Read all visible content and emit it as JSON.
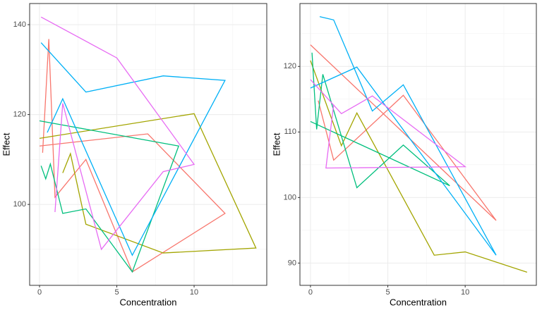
{
  "chart_data": [
    {
      "type": "line",
      "x_label": "Concentration",
      "y_label": "Effect",
      "xlim": [
        -0.64,
        14.7
      ],
      "ylim": [
        82,
        144.7
      ],
      "xticks": [
        0,
        5,
        10
      ],
      "yticks": [
        100,
        120,
        140
      ],
      "grid": true,
      "series": [
        {
          "color": "#F8766D",
          "x": [
            0.2,
            0.6,
            1,
            3,
            6,
            12,
            7,
            0
          ],
          "values": [
            111.5,
            136.8,
            101.6,
            110,
            85,
            98,
            115.7,
            113
          ]
        },
        {
          "color": "#A3A500",
          "x": [
            0,
            10,
            14,
            8,
            3,
            2,
            1.5
          ],
          "values": [
            114.7,
            120.2,
            90.3,
            89.2,
            95.6,
            111.3,
            107
          ]
        },
        {
          "color": "#00BF7D",
          "x": [
            0.1,
            0.4,
            0.7,
            1.5,
            3,
            6,
            9,
            0
          ],
          "values": [
            108.6,
            105.7,
            109,
            98,
            99,
            85,
            113,
            118.6
          ]
        },
        {
          "color": "#00B0F6",
          "x": [
            0.1,
            3,
            8,
            12,
            6,
            1.5,
            0.5
          ],
          "values": [
            136,
            125,
            128.6,
            127.6,
            88.7,
            123.5,
            116
          ]
        },
        {
          "color": "#E76BF3",
          "x": [
            0.1,
            5,
            10,
            8,
            4,
            1.5,
            1
          ],
          "values": [
            141.7,
            132.6,
            108.9,
            107.3,
            90,
            122.5,
            98.3
          ]
        }
      ]
    },
    {
      "type": "line",
      "x_label": "Concentration",
      "y_label": "Effect",
      "xlim": [
        -0.68,
        14.6
      ],
      "ylim": [
        86.6,
        129.6
      ],
      "xticks": [
        0,
        5,
        10
      ],
      "yticks": [
        90,
        100,
        110,
        120
      ],
      "grid": true,
      "series": [
        {
          "color": "#F8766D",
          "x": [
            0,
            12,
            6,
            1.5,
            0.5
          ],
          "values": [
            123.3,
            96.5,
            115.6,
            105.7,
            114.8
          ]
        },
        {
          "color": "#A3A500",
          "x": [
            0,
            2,
            3,
            8,
            10,
            14
          ],
          "values": [
            120.9,
            107.9,
            112.9,
            91.2,
            91.7,
            88.6
          ]
        },
        {
          "color": "#00BF7D",
          "x": [
            0,
            9,
            6,
            3,
            0.8,
            0.4,
            0.1
          ],
          "values": [
            111.6,
            101.8,
            108,
            101.5,
            118.8,
            110.4,
            122.1
          ]
        },
        {
          "color": "#00B0F6",
          "x": [
            0.6,
            1.5,
            4,
            6,
            12,
            3,
            0
          ],
          "values": [
            127.6,
            127.1,
            113.2,
            117.2,
            91.2,
            119.9,
            116.7
          ]
        },
        {
          "color": "#E76BF3",
          "x": [
            0,
            2,
            4,
            10,
            1,
            1.5
          ],
          "values": [
            118,
            112.8,
            115.5,
            104.7,
            104.5,
            114.2
          ]
        }
      ]
    }
  ]
}
